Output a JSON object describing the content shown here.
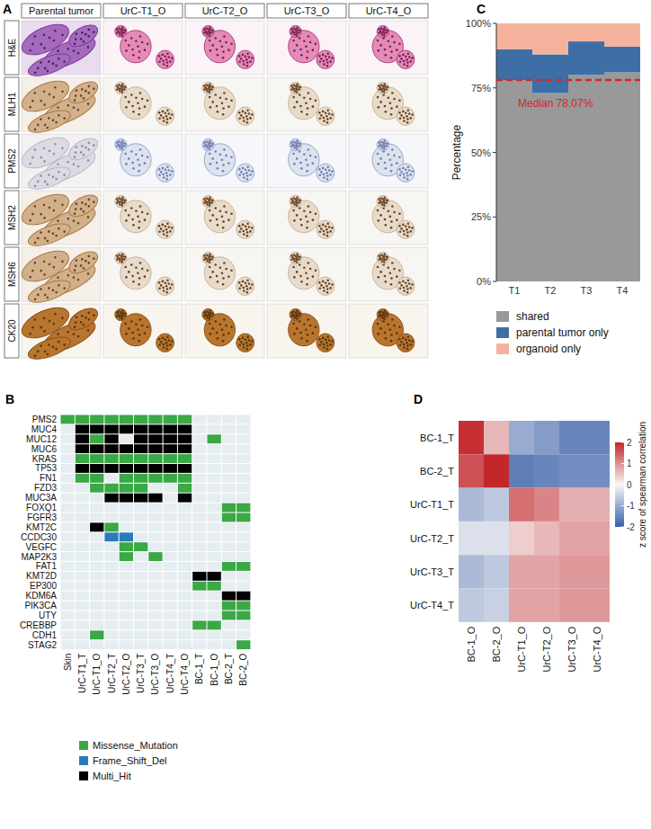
{
  "chart_data": [
    {
      "title": "A",
      "type": "image_grid",
      "columns": [
        "Parental tumor",
        "UrC-T1_O",
        "UrC-T2_O",
        "UrC-T3_O",
        "UrC-T4_O"
      ],
      "rows": [
        "H&E",
        "MLH1",
        "PMS2",
        "MSH2",
        "MSH6",
        "CK20"
      ]
    },
    {
      "title": "B",
      "type": "heatmap",
      "rows": [
        "PMS2",
        "MUC4",
        "MUC12",
        "MUC6",
        "KRAS",
        "TP53",
        "FN1",
        "FZD3",
        "MUC3A",
        "FOXQ1",
        "FGFR3",
        "KMT2C",
        "CCDC30",
        "VEGFC",
        "MAP2K3",
        "FAT1",
        "KMT2D",
        "EP300",
        "KDM6A",
        "PIK3CA",
        "UTY",
        "CREBBP",
        "CDH1",
        "STAG2"
      ],
      "columns": [
        "Skin",
        "UrC-T1_T",
        "UrC-T1_O",
        "UrC-T2_T",
        "UrC-T2_O",
        "UrC-T3_T",
        "UrC-T3_O",
        "UrC-T4_T",
        "UrC-T4_O",
        "BC-1_T",
        "BC-1_O",
        "BC-2_T",
        "BC-2_O"
      ],
      "cells": [
        [
          1,
          1,
          1,
          1,
          1,
          1,
          1,
          1,
          1,
          0,
          0,
          0,
          0
        ],
        [
          0,
          3,
          3,
          3,
          3,
          3,
          3,
          3,
          3,
          0,
          0,
          0,
          0
        ],
        [
          0,
          3,
          1,
          3,
          0,
          3,
          3,
          3,
          3,
          0,
          1,
          0,
          0
        ],
        [
          0,
          3,
          3,
          3,
          3,
          3,
          3,
          3,
          3,
          0,
          0,
          0,
          0
        ],
        [
          0,
          1,
          1,
          1,
          1,
          1,
          1,
          1,
          1,
          0,
          0,
          0,
          0
        ],
        [
          0,
          3,
          3,
          3,
          3,
          3,
          3,
          3,
          3,
          0,
          0,
          0,
          0
        ],
        [
          0,
          1,
          1,
          0,
          1,
          1,
          1,
          1,
          1,
          0,
          0,
          0,
          0
        ],
        [
          0,
          0,
          1,
          1,
          1,
          1,
          0,
          0,
          1,
          0,
          0,
          0,
          0
        ],
        [
          0,
          0,
          0,
          3,
          3,
          3,
          3,
          0,
          3,
          0,
          0,
          0,
          0
        ],
        [
          0,
          0,
          0,
          0,
          0,
          0,
          0,
          0,
          0,
          0,
          0,
          1,
          1
        ],
        [
          0,
          0,
          0,
          0,
          0,
          0,
          0,
          0,
          0,
          0,
          0,
          1,
          1
        ],
        [
          0,
          0,
          3,
          1,
          0,
          0,
          0,
          0,
          0,
          0,
          0,
          0,
          0
        ],
        [
          0,
          0,
          0,
          2,
          2,
          0,
          0,
          0,
          0,
          0,
          0,
          0,
          0
        ],
        [
          0,
          0,
          0,
          0,
          1,
          1,
          0,
          0,
          0,
          0,
          0,
          0,
          0
        ],
        [
          0,
          0,
          0,
          0,
          1,
          0,
          1,
          0,
          0,
          0,
          0,
          0,
          0
        ],
        [
          0,
          0,
          0,
          0,
          0,
          0,
          0,
          0,
          0,
          0,
          0,
          1,
          1
        ],
        [
          0,
          0,
          0,
          0,
          0,
          0,
          0,
          0,
          0,
          3,
          3,
          0,
          0
        ],
        [
          0,
          0,
          0,
          0,
          0,
          0,
          0,
          0,
          0,
          1,
          1,
          0,
          0
        ],
        [
          0,
          0,
          0,
          0,
          0,
          0,
          0,
          0,
          0,
          0,
          0,
          3,
          3
        ],
        [
          0,
          0,
          0,
          0,
          0,
          0,
          0,
          0,
          0,
          0,
          0,
          1,
          1
        ],
        [
          0,
          0,
          0,
          0,
          0,
          0,
          0,
          0,
          0,
          0,
          0,
          1,
          1
        ],
        [
          0,
          0,
          0,
          0,
          0,
          0,
          0,
          0,
          0,
          1,
          1,
          0,
          0
        ],
        [
          0,
          0,
          1,
          0,
          0,
          0,
          0,
          0,
          0,
          0,
          0,
          0,
          0
        ],
        [
          0,
          0,
          0,
          0,
          0,
          0,
          0,
          0,
          0,
          0,
          0,
          0,
          1
        ]
      ],
      "series": [
        {
          "name": "Missense_Mutation",
          "color": "#3aa845",
          "value": 1
        },
        {
          "name": "Frame_Shift_Del",
          "color": "#2b7bba",
          "value": 2
        },
        {
          "name": "Multi_Hit",
          "color": "#000000",
          "value": 3
        }
      ],
      "legend": "bottom"
    },
    {
      "title": "C",
      "type": "bar",
      "stacked": true,
      "categories": [
        "T1",
        "T2",
        "T3",
        "T4"
      ],
      "series": [
        {
          "name": "shared",
          "color": "#999999",
          "values": [
            78,
            73,
            80,
            81
          ]
        },
        {
          "name": "parental tumor only",
          "color": "#3d6fa6",
          "values": [
            12,
            15,
            13,
            10
          ]
        },
        {
          "name": "organoid only",
          "color": "#f4b29c",
          "values": [
            10,
            12,
            7,
            9
          ]
        }
      ],
      "ylabel": "Percentage",
      "ylim": [
        0,
        100
      ],
      "yticks": [
        {
          "value": 0,
          "label": "0%"
        },
        {
          "value": 25,
          "label": "25%"
        },
        {
          "value": 50,
          "label": "50%"
        },
        {
          "value": 75,
          "label": "75%"
        },
        {
          "value": 100,
          "label": "100%"
        }
      ],
      "annotations": [
        {
          "text": "Median 78.07%",
          "value": 78.07,
          "color": "#d62728",
          "line_style": "dashed"
        }
      ],
      "legend": "bottom"
    },
    {
      "title": "D",
      "type": "heatmap",
      "rows": [
        "BC-1_T",
        "BC-2_T",
        "UrC-T1_T",
        "UrC-T2_T",
        "UrC-T3_T",
        "UrC-T4_T"
      ],
      "columns": [
        "BC-1_O",
        "BC-2_O",
        "UrC-T1_O",
        "UrC-T2_O",
        "UrC-T3_O",
        "UrC-T4_O"
      ],
      "cells": [
        [
          1.9,
          0.6,
          -1.0,
          -1.2,
          -1.5,
          -1.5
        ],
        [
          1.6,
          2.2,
          -1.6,
          -1.5,
          -1.4,
          -1.4
        ],
        [
          -0.8,
          -0.6,
          1.3,
          1.1,
          0.7,
          0.7
        ],
        [
          -0.3,
          -0.3,
          0.4,
          0.6,
          0.8,
          0.8
        ],
        [
          -0.8,
          -0.6,
          0.8,
          0.8,
          0.9,
          0.9
        ],
        [
          -0.6,
          -0.5,
          0.8,
          0.8,
          0.9,
          0.9
        ]
      ],
      "colorbar": {
        "title": "z score of spearman correlation",
        "range": [
          -2,
          2
        ],
        "ticks": [
          -2,
          -1,
          0,
          1,
          2
        ],
        "colors": [
          "#3a5fa8",
          "#f7f7f7",
          "#c3262b"
        ]
      }
    }
  ]
}
